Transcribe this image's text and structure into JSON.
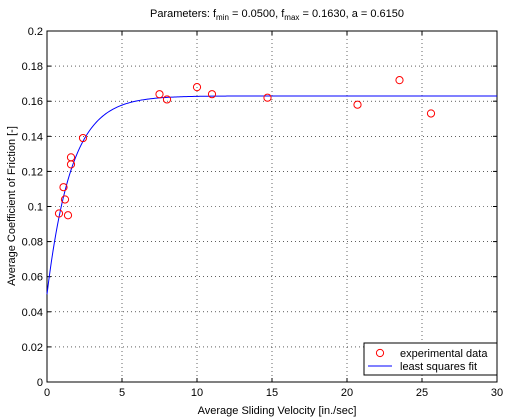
{
  "chart_data": {
    "type": "scatter",
    "title": {
      "pre": "Parameters: f",
      "sub1": "min",
      "mid1": " = 0.0500, f",
      "sub2": "max",
      "mid2": " = 0.1630, a = 0.6150"
    },
    "xlabel": "Average Sliding Velocity [in./sec]",
    "ylabel": "Average Coefficient of Friction [-]",
    "xlim": [
      0,
      30
    ],
    "ylim": [
      0,
      0.2
    ],
    "xticks": [
      0,
      5,
      10,
      15,
      20,
      25,
      30
    ],
    "yticks": [
      0,
      0.02,
      0.04,
      0.06,
      0.08,
      0.1,
      0.12,
      0.14,
      0.16,
      0.18,
      0.2
    ],
    "ytick_labels": [
      "0",
      "0.02",
      "0.04",
      "0.06",
      "0.08",
      "0.1",
      "0.12",
      "0.14",
      "0.16",
      "0.18",
      "0.2"
    ],
    "grid": true,
    "legend_position": "bottom-right",
    "series": [
      {
        "name": "experimental data",
        "kind": "markers",
        "marker": "circle",
        "color": "#ff0000",
        "x": [
          0.8,
          1.1,
          1.2,
          1.4,
          1.6,
          1.6,
          2.4,
          7.5,
          8.0,
          10.0,
          11.0,
          14.7,
          20.7,
          23.5,
          25.6
        ],
        "y": [
          0.096,
          0.111,
          0.104,
          0.095,
          0.128,
          0.124,
          0.139,
          0.164,
          0.161,
          0.168,
          0.164,
          0.162,
          0.158,
          0.172,
          0.153
        ]
      },
      {
        "name": "least squares fit",
        "kind": "line",
        "color": "#0000ff",
        "model": {
          "f_min": 0.05,
          "f_max": 0.163,
          "a": 0.615
        }
      }
    ]
  }
}
